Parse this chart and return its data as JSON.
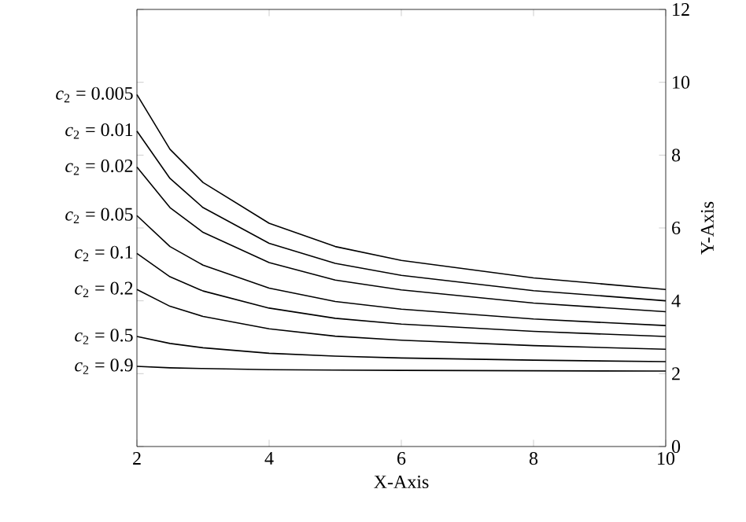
{
  "chart_data": {
    "type": "line",
    "xlabel": "X-Axis",
    "ylabel": "Y-Axis",
    "x": [
      2,
      2.5,
      3,
      4,
      5,
      6,
      8,
      10
    ],
    "xlim": [
      2,
      10
    ],
    "xticks": [
      2,
      4,
      6,
      8,
      10
    ],
    "ylim": [
      0,
      12
    ],
    "yticks": [
      0,
      2,
      4,
      6,
      8,
      10,
      12
    ],
    "grid": false,
    "marker": "none",
    "line_style": "solid",
    "series": [
      {
        "name": "*c*$_{2}$ = 0.005",
        "color": "#000000",
        "values": [
          9.66,
          8.16,
          7.25,
          6.13,
          5.49,
          5.11,
          4.63,
          4.31
        ]
      },
      {
        "name": "*c*$_{2}$ = 0.01",
        "color": "#000000",
        "values": [
          8.66,
          7.36,
          6.56,
          5.58,
          5.03,
          4.7,
          4.28,
          4.0
        ]
      },
      {
        "name": "*c*$_{2}$ = 0.02",
        "color": "#000000",
        "values": [
          7.67,
          6.56,
          5.88,
          5.05,
          4.57,
          4.3,
          3.94,
          3.7
        ]
      },
      {
        "name": "*c*$_{2}$ = 0.05",
        "color": "#000000",
        "values": [
          6.34,
          5.49,
          4.98,
          4.35,
          3.98,
          3.77,
          3.5,
          3.32
        ]
      },
      {
        "name": "*c*$_{2}$ = 0.1",
        "color": "#000000",
        "values": [
          5.3,
          4.66,
          4.27,
          3.8,
          3.52,
          3.36,
          3.16,
          3.02
        ]
      },
      {
        "name": "*c*$_{2}$ = 0.2",
        "color": "#000000",
        "values": [
          4.31,
          3.85,
          3.57,
          3.23,
          3.03,
          2.92,
          2.77,
          2.67
        ]
      },
      {
        "name": "*c*$_{2}$ = 0.5",
        "color": "#000000",
        "values": [
          3.02,
          2.83,
          2.71,
          2.56,
          2.48,
          2.43,
          2.37,
          2.33
        ]
      },
      {
        "name": "*c*$_{2}$ = 0.9",
        "color": "#000000",
        "values": [
          2.2,
          2.16,
          2.14,
          2.11,
          2.1,
          2.09,
          2.08,
          2.07
        ]
      }
    ]
  }
}
